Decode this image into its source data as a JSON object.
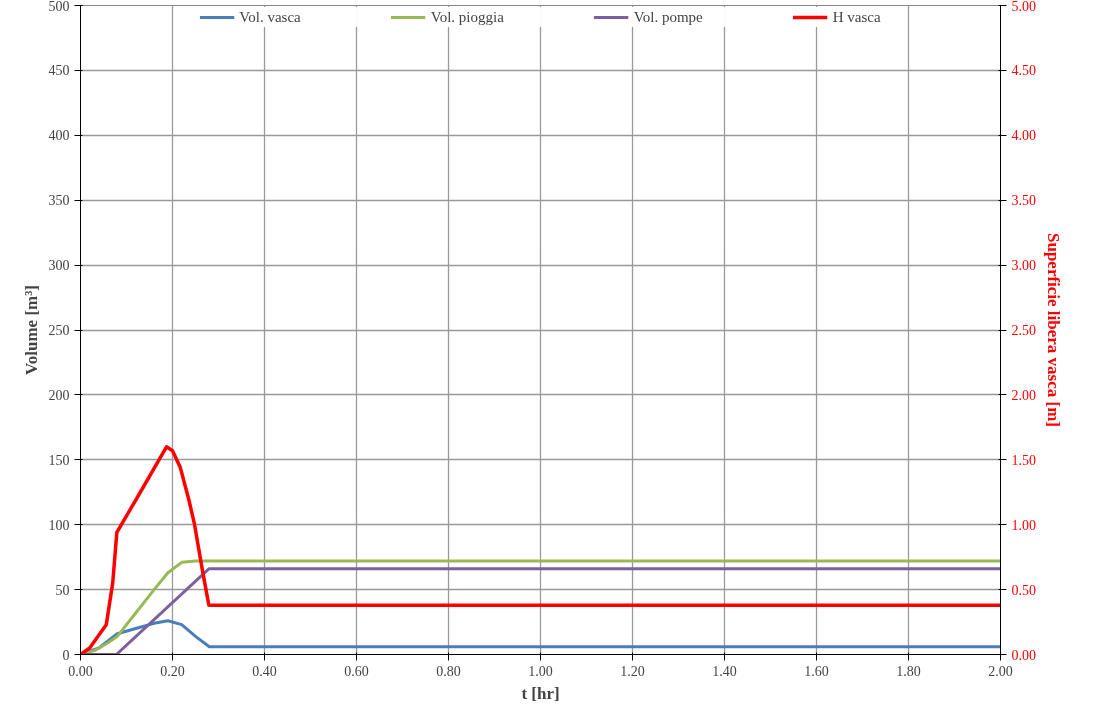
{
  "chart_data": {
    "type": "line",
    "xlabel": "t [hr]",
    "ylabel": "Volume [m³]",
    "y2label": "Superficie libera vasca [m]",
    "xlim": [
      0,
      2
    ],
    "xticks": [
      {
        "value": 0,
        "label": "0.00"
      },
      {
        "value": 0.2,
        "label": "0.20"
      },
      {
        "value": 0.4,
        "label": "0.40"
      },
      {
        "value": 0.6,
        "label": "0.60"
      },
      {
        "value": 0.8,
        "label": "0.80"
      },
      {
        "value": 1,
        "label": "1.00"
      },
      {
        "value": 1.2,
        "label": "1.20"
      },
      {
        "value": 1.4,
        "label": "1.40"
      },
      {
        "value": 1.6,
        "label": "1.60"
      },
      {
        "value": 1.8,
        "label": "1.80"
      },
      {
        "value": 2,
        "label": "2.00"
      }
    ],
    "ylim": [
      0,
      500
    ],
    "yticks": [
      0,
      50,
      100,
      150,
      200,
      250,
      300,
      350,
      400,
      450,
      500
    ],
    "y2lim": [
      0,
      5
    ],
    "y2ticks": [
      {
        "value": 0,
        "label": "0.00"
      },
      {
        "value": 0.5,
        "label": "0.50"
      },
      {
        "value": 1,
        "label": "1.00"
      },
      {
        "value": 1.5,
        "label": "1.50"
      },
      {
        "value": 2,
        "label": "2.00"
      },
      {
        "value": 2.5,
        "label": "2.50"
      },
      {
        "value": 3,
        "label": "3.00"
      },
      {
        "value": 3.5,
        "label": "3.50"
      },
      {
        "value": 4,
        "label": "4.00"
      },
      {
        "value": 4.5,
        "label": "4.50"
      },
      {
        "value": 5,
        "label": "5.00"
      }
    ],
    "grid": true,
    "legend": "top",
    "marker": "none",
    "series": [
      {
        "name": "Vol. vasca",
        "color": "#4a7ebb",
        "x": [
          0,
          0.04,
          0.08,
          0.12,
          0.16,
          0.19,
          0.22,
          0.25,
          0.28,
          2
        ],
        "values": [
          0,
          5,
          16,
          20,
          24,
          26,
          23,
          14,
          6,
          6
        ]
      },
      {
        "name": "Vol. pioggia",
        "color": "#98b954",
        "x": [
          0,
          0.03,
          0.06,
          0.08,
          0.12,
          0.16,
          0.19,
          0.22,
          0.25,
          0.28,
          2
        ],
        "values": [
          0,
          3,
          9,
          14,
          32,
          50,
          63,
          71,
          72,
          72,
          72
        ]
      },
      {
        "name": "Vol. pompe",
        "color": "#7d60a0",
        "x": [
          0,
          0.078,
          0.279,
          2
        ],
        "values": [
          0,
          0,
          66,
          66
        ]
      },
      {
        "name": "H vasca",
        "color": "#ff0000",
        "axis": "y2",
        "x": [
          0,
          0.02,
          0.04,
          0.056,
          0.07,
          0.079,
          0.13,
          0.187,
          0.2,
          0.217,
          0.235,
          0.248,
          0.265,
          0.279,
          2
        ],
        "values": [
          0,
          0.05,
          0.15,
          0.23,
          0.55,
          0.94,
          1.25,
          1.6,
          1.57,
          1.44,
          1.2,
          1.0,
          0.65,
          0.38,
          0.38
        ]
      }
    ]
  }
}
